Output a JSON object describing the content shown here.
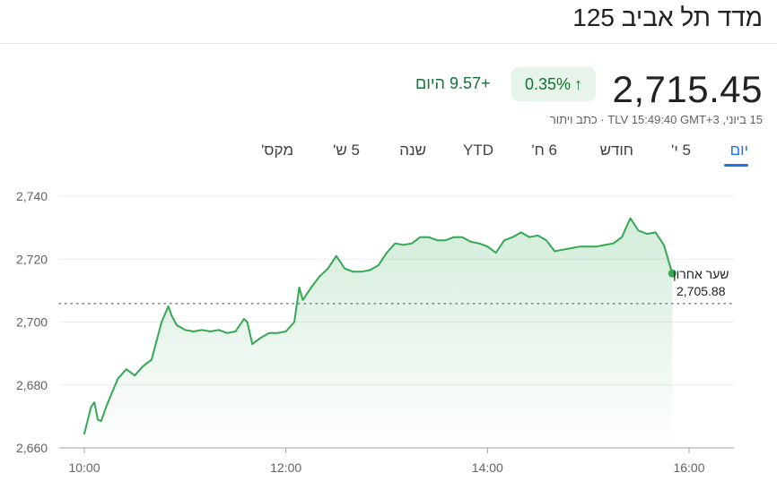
{
  "title": "מדד תל אביב 125",
  "price": "2,715.45",
  "change_pct": "0.35%",
  "change_abs": "+9.57 היום",
  "meta": "15 ביוני, TLV 15:49:40 GMT+3 · כתב ויתור",
  "tabs": [
    "יום",
    "5 י'",
    "חודש",
    "6 ח'",
    "YTD",
    "שנה",
    "5 ש'",
    "מקס'"
  ],
  "active_tab": "יום",
  "last_close_label": "שער אחרון",
  "last_close_value": "2,705.88",
  "colors": {
    "up": "#137333",
    "line": "#34a853",
    "accent": "#1a73e8"
  },
  "chart_data": {
    "type": "area",
    "x_unit": "time",
    "xlim": [
      "10:00",
      "16:00"
    ],
    "ylim": [
      2660,
      2740
    ],
    "yticks": [
      "2,660",
      "2,680",
      "2,700",
      "2,720",
      "2,740"
    ],
    "xticks": [
      "10:00",
      "12:00",
      "14:00",
      "16:00"
    ],
    "reference_line": 2705.88,
    "grid": true,
    "series": [
      {
        "x": [
          "10:00",
          "10:04",
          "10:06",
          "10:08",
          "10:10",
          "10:13",
          "10:16",
          "10:20",
          "10:25",
          "10:30",
          "10:35",
          "10:40",
          "10:43",
          "10:46",
          "10:50",
          "10:52",
          "10:55",
          "11:00",
          "11:05",
          "11:10",
          "11:15",
          "11:20",
          "11:25",
          "11:30",
          "11:35",
          "11:37",
          "11:40",
          "11:45",
          "11:50",
          "11:55",
          "12:00",
          "12:05",
          "12:08",
          "12:10",
          "12:15",
          "12:20",
          "12:25",
          "12:30",
          "12:35",
          "12:40",
          "12:45",
          "12:50",
          "12:55",
          "13:00",
          "13:05",
          "13:10",
          "13:15",
          "13:20",
          "13:25",
          "13:30",
          "13:35",
          "13:40",
          "13:45",
          "13:50",
          "13:55",
          "14:00",
          "14:05",
          "14:10",
          "14:15",
          "14:20",
          "14:25",
          "14:30",
          "14:35",
          "14:40",
          "14:45",
          "14:50",
          "14:55",
          "15:00",
          "15:05",
          "15:10",
          "15:15",
          "15:20",
          "15:25",
          "15:30",
          "15:35",
          "15:40",
          "15:45",
          "15:50"
        ],
        "y": [
          2664.5,
          2673,
          2674.5,
          2669,
          2668.5,
          2673,
          2677,
          2682,
          2685,
          2683,
          2686,
          2688,
          2694,
          2700,
          2705,
          2702,
          2699,
          2697.5,
          2697,
          2697.5,
          2697,
          2697.5,
          2696.5,
          2697,
          2701,
          2700,
          2693,
          2695,
          2696.5,
          2696.5,
          2697,
          2700,
          2711,
          2707,
          2711,
          2714.5,
          2717,
          2721,
          2717,
          2716,
          2716,
          2716.5,
          2718,
          2722,
          2725,
          2724.5,
          2725,
          2727,
          2727,
          2726,
          2726,
          2727,
          2727,
          2725.5,
          2725,
          2724,
          2722,
          2726,
          2727,
          2728.5,
          2727,
          2727.5,
          2726,
          2722.5,
          2723,
          2723.5,
          2724,
          2724,
          2724,
          2724.5,
          2725,
          2727,
          2733,
          2729,
          2728,
          2728.5,
          2724.5,
          2715.45
        ]
      }
    ]
  }
}
